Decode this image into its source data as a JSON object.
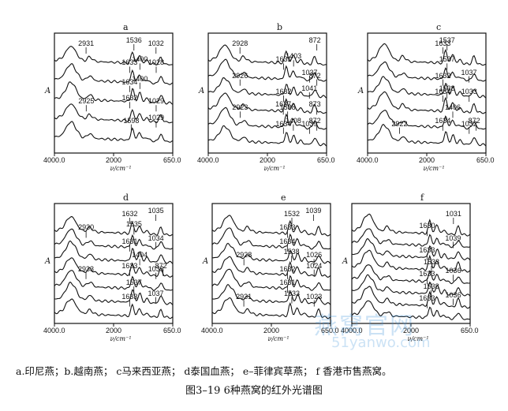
{
  "tick_labels": [
    "4000.0",
    "2000",
    "650.0"
  ],
  "x_unit": "ν/cm⁻¹",
  "y_label": "A",
  "panels": [
    {
      "label": "a",
      "peaks": [
        [
          "2931",
          "1536",
          "1032"
        ],
        [
          "1633",
          "1400",
          "1028"
        ],
        [
          "1634",
          "1400"
        ],
        [
          "2925",
          "1632",
          "1029"
        ],
        [
          "1598",
          "1029"
        ]
      ]
    },
    {
      "label": "b",
      "peaks": [
        [
          "2928",
          "872"
        ],
        [
          "1631",
          "1403"
        ],
        [
          "2926",
          "1037",
          "872"
        ],
        [
          "1632",
          "1041"
        ],
        [
          "2923",
          "1637",
          "1538",
          "873"
        ],
        [
          "1634",
          "1408",
          "1039",
          "872"
        ]
      ]
    },
    {
      "label": "c",
      "peaks": [
        [
          "1633",
          "1537"
        ],
        [
          "1537"
        ],
        [
          "1632",
          "1037"
        ],
        [
          "1634",
          "1538",
          "1033"
        ],
        [
          "1406"
        ],
        [
          "2922",
          "1634",
          "1032",
          "872"
        ]
      ]
    },
    {
      "label": "d",
      "peaks": [
        [
          "1632",
          "1035"
        ],
        [
          "2930",
          "1535"
        ],
        [
          "1631",
          "1034"
        ],
        [
          "1404"
        ],
        [
          "2933",
          "1633",
          "1033",
          "872"
        ],
        [
          "1537"
        ],
        [
          "1633",
          "1037"
        ]
      ]
    },
    {
      "label": "e",
      "peaks": [
        [
          "1532",
          "1039"
        ],
        [
          "1633"
        ],
        [
          "1634"
        ],
        [
          "2928",
          "1538",
          "1026"
        ],
        [
          "1632",
          "1024"
        ],
        [
          "1631"
        ],
        [
          "2931",
          "1533",
          "1023"
        ]
      ]
    },
    {
      "label": "f",
      "peaks": [
        [
          "1031"
        ],
        [
          "1630"
        ],
        [
          "1039"
        ],
        [
          "1633"
        ],
        [
          "1533"
        ],
        [
          "1633",
          "1036"
        ],
        [
          "1538"
        ],
        [
          "1633",
          "1036"
        ]
      ]
    }
  ],
  "legend": "a.印尼燕；b.越南燕；  c马来西亚燕；  d泰国血燕；  e–菲律宾草燕；  f 香港市售燕窝。",
  "caption": "图3–19    6种燕窝的红外光谱图",
  "watermark": "燕窝官网",
  "watermark_url": "51yanwo.com"
}
